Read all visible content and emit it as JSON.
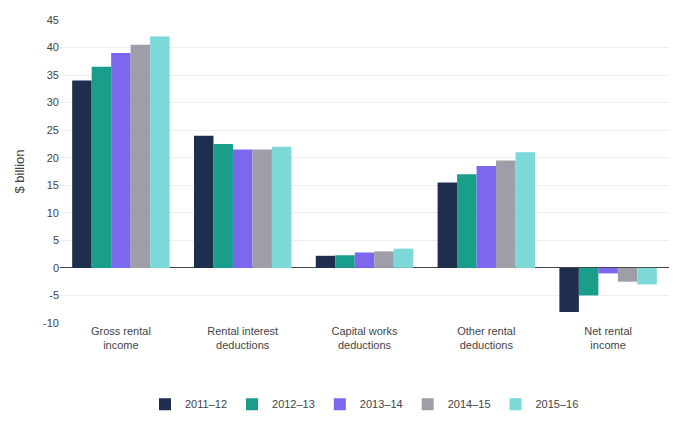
{
  "chart_data": {
    "type": "bar",
    "categories": [
      "Gross rental\nincome",
      "Rental interest\ndeductions",
      "Capital works\ndeductions",
      "Other rental\ndeductions",
      "Net rental\nincome"
    ],
    "series": [
      {
        "name": "2011–12",
        "color": "#1f2d4e",
        "values": [
          34.0,
          24.0,
          2.2,
          15.5,
          -8.0
        ]
      },
      {
        "name": "2012–13",
        "color": "#1a9e8c",
        "values": [
          36.5,
          22.5,
          2.3,
          17.0,
          -5.0
        ]
      },
      {
        "name": "2013–14",
        "color": "#7b68ee",
        "values": [
          39.0,
          21.5,
          2.8,
          18.5,
          -1.0
        ]
      },
      {
        "name": "2014–15",
        "color": "#9e9ea8",
        "values": [
          40.5,
          21.5,
          3.0,
          19.5,
          -2.5
        ]
      },
      {
        "name": "2015–16",
        "color": "#7dd8d8",
        "values": [
          42.0,
          22.0,
          3.5,
          21.0,
          -3.0
        ]
      }
    ],
    "ylabel": "$ billion",
    "ylim": [
      -10,
      45
    ],
    "yticks": [
      -10,
      -5,
      0,
      5,
      10,
      15,
      20,
      25,
      30,
      35,
      40,
      45
    ],
    "grid": true,
    "legend": "bottom"
  }
}
